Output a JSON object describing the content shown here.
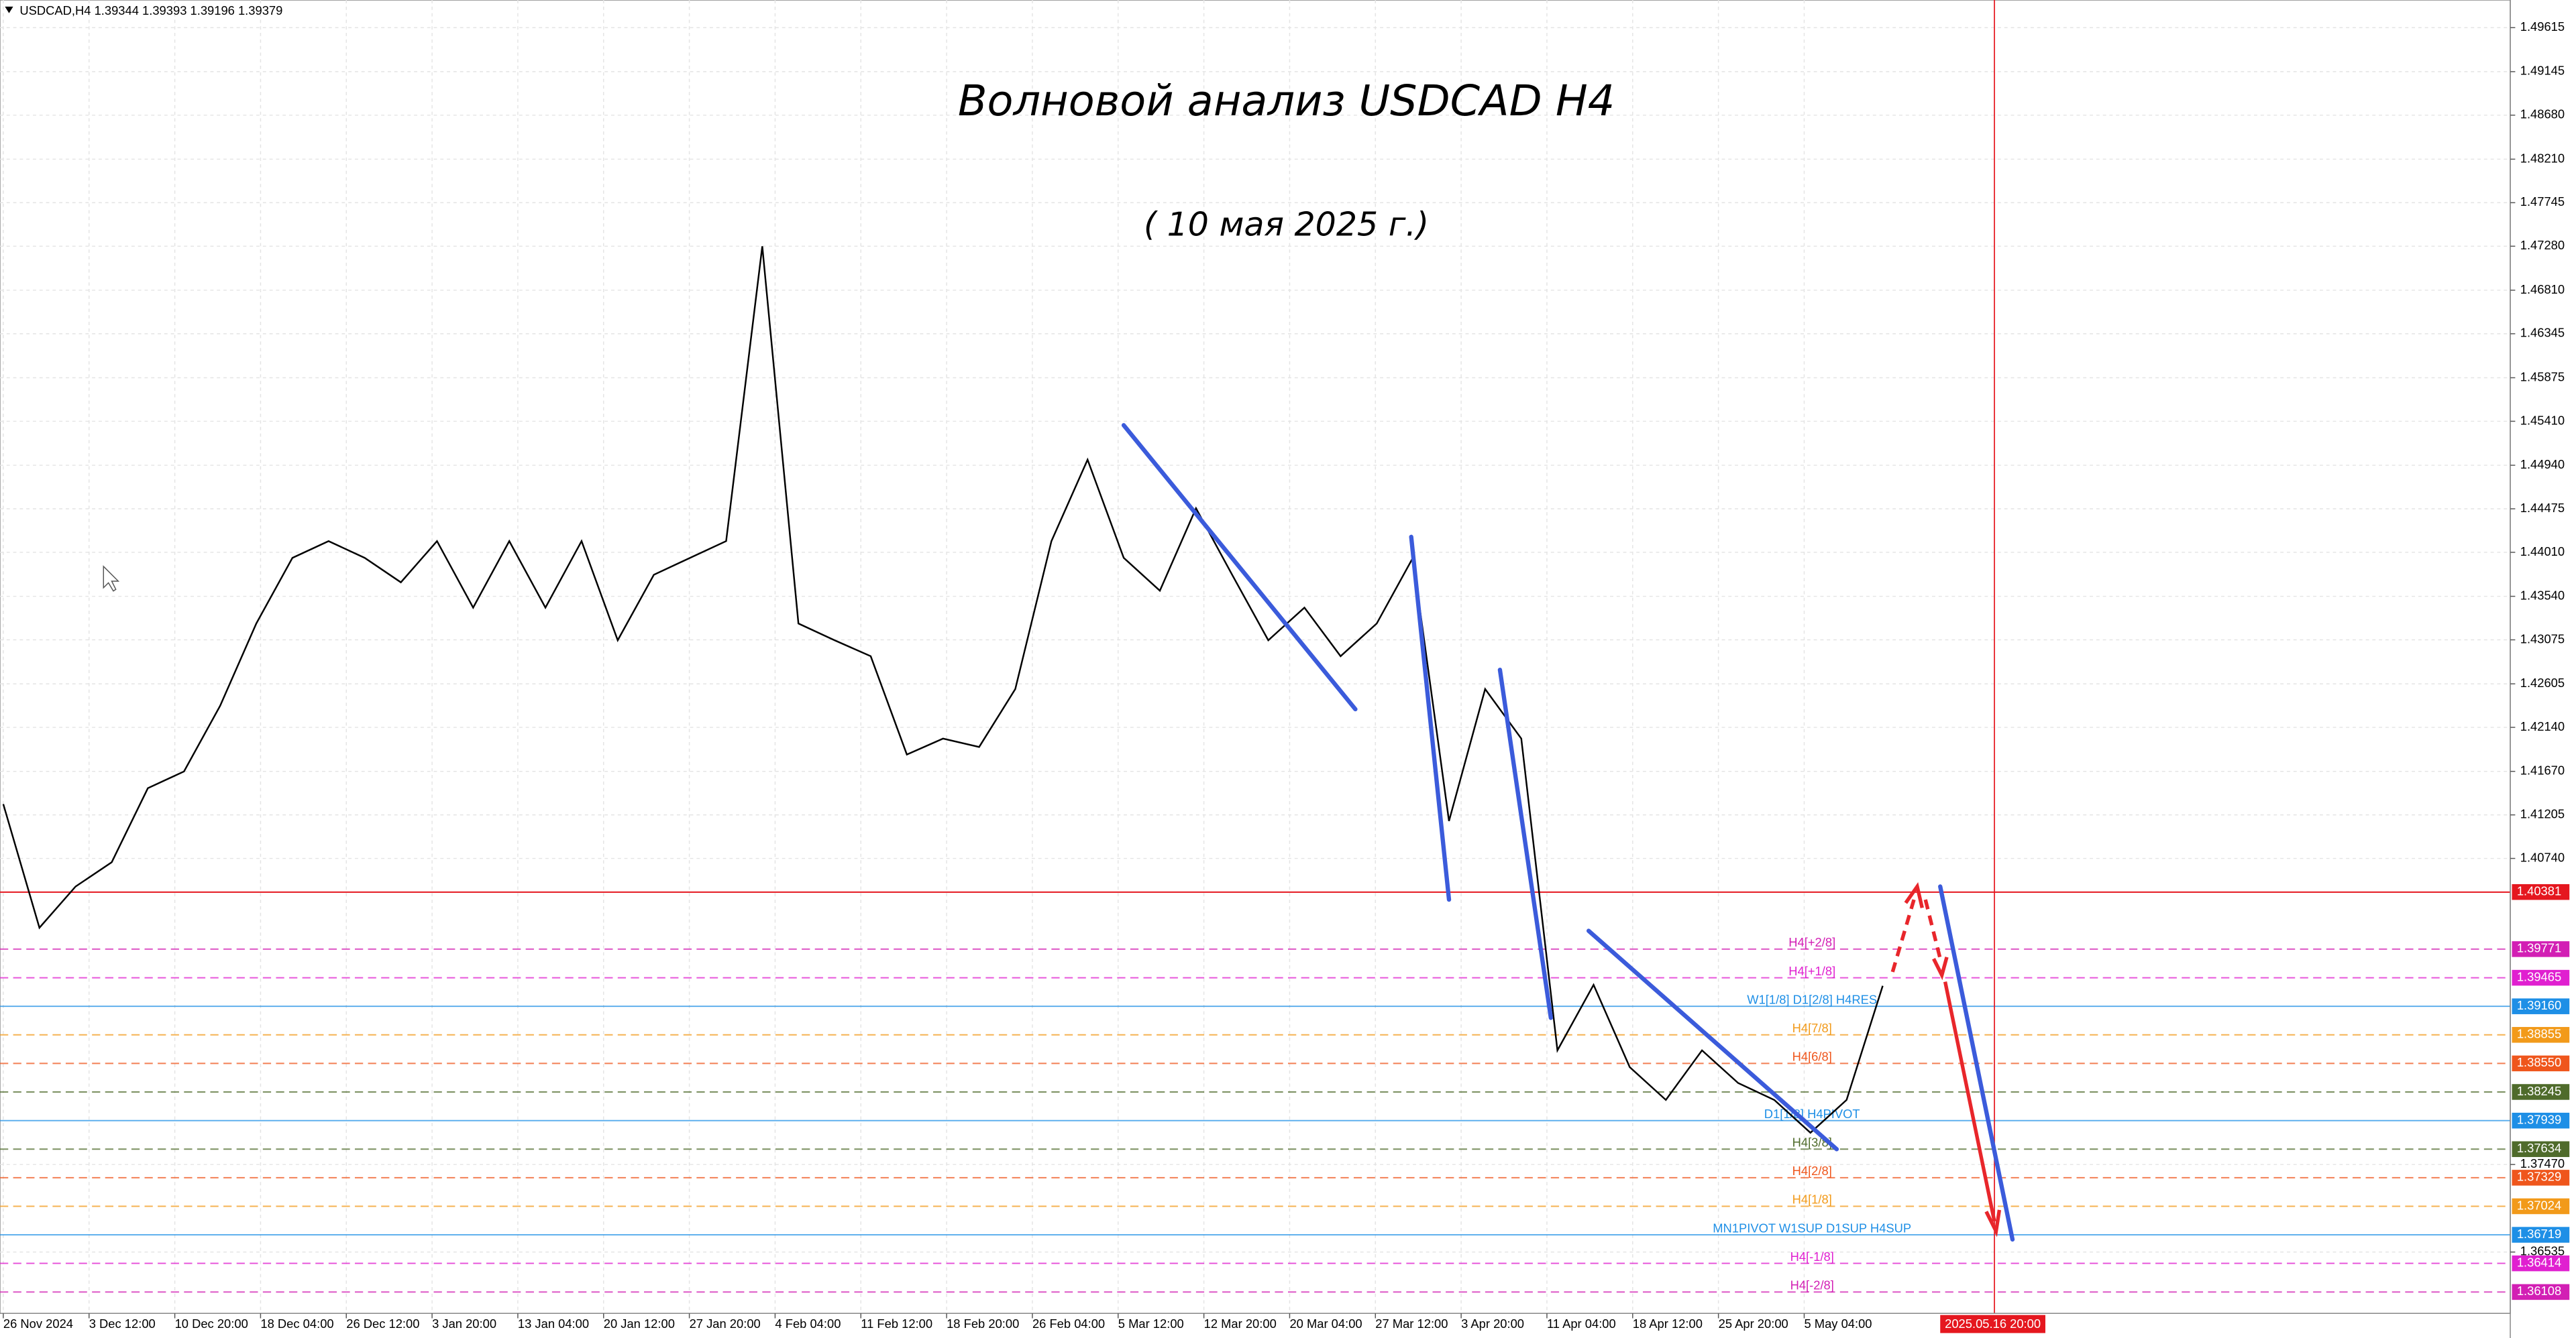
{
  "header": "USDCAD,H4  1.39344 1.39393 1.39196 1.39379",
  "chart_data": {
    "type": "line",
    "title": "Волновой анализ USDCAD H4",
    "subtitle": "( 10 мая 2025 г.)",
    "color": "#000000",
    "values": [
      1.4132,
      1.4,
      1.4044,
      1.407,
      1.4149,
      1.4167,
      1.4237,
      1.4325,
      1.4395,
      1.4413,
      1.4395,
      1.4369,
      1.4413,
      1.4342,
      1.4413,
      1.4342,
      1.4413,
      1.4307,
      1.4377,
      1.4395,
      1.4413,
      1.4728,
      1.4325,
      1.4307,
      1.429,
      1.4185,
      1.4202,
      1.4193,
      1.4255,
      1.4413,
      1.45,
      1.4395,
      1.436,
      1.4448,
      1.4377,
      1.4307,
      1.4342,
      1.429,
      1.4325,
      1.4395,
      1.4114,
      1.4255,
      1.4202,
      1.3869,
      1.3939,
      1.3851,
      1.3816,
      1.3869,
      1.3834,
      1.3816,
      1.3781,
      1.3816,
      1.39379
    ],
    "ylim": [
      1.3588,
      1.4991
    ],
    "yticks": [
      1.49615,
      1.49145,
      {
        "value": 1.4868,
        "label": "1.48680"
      },
      {
        "value": 1.4821,
        "label": "1.48210"
      },
      1.47745,
      {
        "value": 1.4728,
        "label": "1.47280"
      },
      {
        "value": 1.4681,
        "label": "1.46810"
      },
      1.46345,
      1.45875,
      {
        "value": 1.4541,
        "label": "1.45410"
      },
      {
        "value": 1.4494,
        "label": "1.44940"
      },
      1.44475,
      {
        "value": 1.4401,
        "label": "1.44010"
      },
      {
        "value": 1.4354,
        "label": "1.43540"
      },
      1.43075,
      1.42605,
      {
        "value": 1.4214,
        "label": "1.42140"
      },
      {
        "value": 1.4167,
        "label": "1.41670"
      },
      1.41205,
      {
        "value": 1.4074,
        "label": "1.40740"
      },
      {
        "value": 1.3747,
        "label": "1.37470"
      },
      1.36535
    ],
    "grid": true,
    "time_labels": [
      "26 Nov 2024",
      "3 Dec 12:00",
      "10 Dec 20:00",
      "18 Dec 04:00",
      "26 Dec 12:00",
      "3 Jan 20:00",
      "13 Jan 04:00",
      "20 Jan 12:00",
      "27 Jan 20:00",
      "4 Feb 04:00",
      "11 Feb 12:00",
      "18 Feb 20:00",
      "26 Feb 04:00",
      "5 Mar 12:00",
      "12 Mar 20:00",
      "20 Mar 04:00",
      "27 Mar 12:00",
      "3 Apr 20:00",
      "11 Apr 04:00",
      "18 Apr 12:00",
      "25 Apr 20:00",
      "5 May 04:00"
    ],
    "current_time_label": "2025.05.16 20:00",
    "levels": [
      {
        "price": 1.40381,
        "color": "#e5171f"
      },
      {
        "name": "H4[+2/8]",
        "price": 1.39771,
        "color": "#d21fb4"
      },
      {
        "name": "H4[+1/8]",
        "price": 1.39465,
        "color": "#e020d0"
      },
      {
        "name": "W1[1/8] D1[2/8] H4RES",
        "price": {
          "value": 1.3916,
          "label": "1.39160"
        },
        "color": "#1e8fe6"
      },
      {
        "name": "H4[7/8]",
        "price": 1.38855,
        "color": "#f29a1a"
      },
      {
        "name": "H4[6/8]",
        "price": {
          "value": 1.3855,
          "label": "1.38550"
        },
        "color": "#ef561c"
      },
      {
        "price": 1.38245,
        "color": "#4f6b2b"
      },
      {
        "name": "D1[1/8] H4PIVOT",
        "price": 1.37939,
        "color": "#1e8fe6"
      },
      {
        "name": "H4[3/8]",
        "price": 1.37634,
        "color": "#4f6b2b"
      },
      {
        "name": "H4[2/8]",
        "price": 1.37329,
        "color": "#ef561c"
      },
      {
        "name": "H4[1/8]",
        "price": 1.37024,
        "color": "#f29a1a"
      },
      {
        "name": "MN1PIVOT W1SUP D1SUP H4SUP",
        "price": 1.36719,
        "color": "#1e8fe6"
      },
      {
        "name": "H4[-1/8]",
        "price": 1.36414,
        "color": "#e020d0"
      },
      {
        "name": "H4[-2/8]",
        "price": 1.36108,
        "color": "#d21fb4"
      }
    ]
  }
}
